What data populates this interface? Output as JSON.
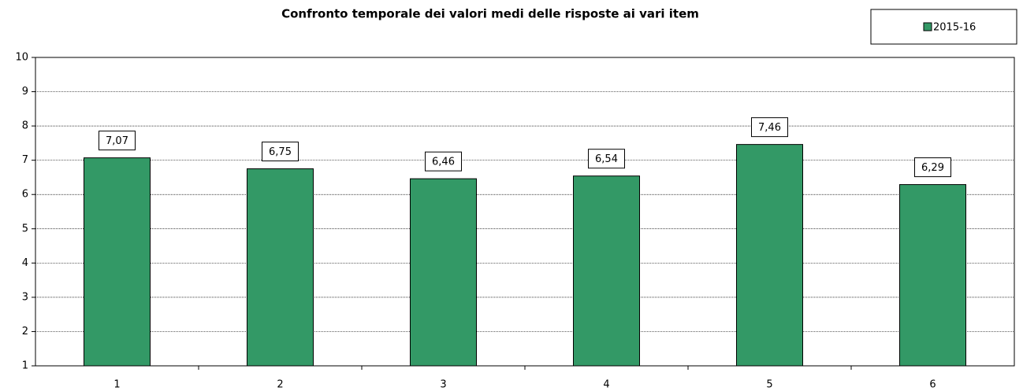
{
  "chart_data": {
    "type": "bar",
    "title": "Confronto temporale dei valori medi delle risposte ai vari item",
    "categories": [
      "1",
      "2",
      "3",
      "4",
      "5",
      "6"
    ],
    "series": [
      {
        "name": "2015-16",
        "color": "#339966",
        "values": [
          7.07,
          6.75,
          6.46,
          6.54,
          7.46,
          6.29
        ],
        "value_labels": [
          "7,07",
          "6,75",
          "6,46",
          "6,54",
          "7,46",
          "6,29"
        ]
      }
    ],
    "ylim": [
      1,
      10
    ],
    "yticks": [
      1,
      2,
      3,
      4,
      5,
      6,
      7,
      8,
      9,
      10
    ],
    "grid": true,
    "legend": "top-right"
  }
}
